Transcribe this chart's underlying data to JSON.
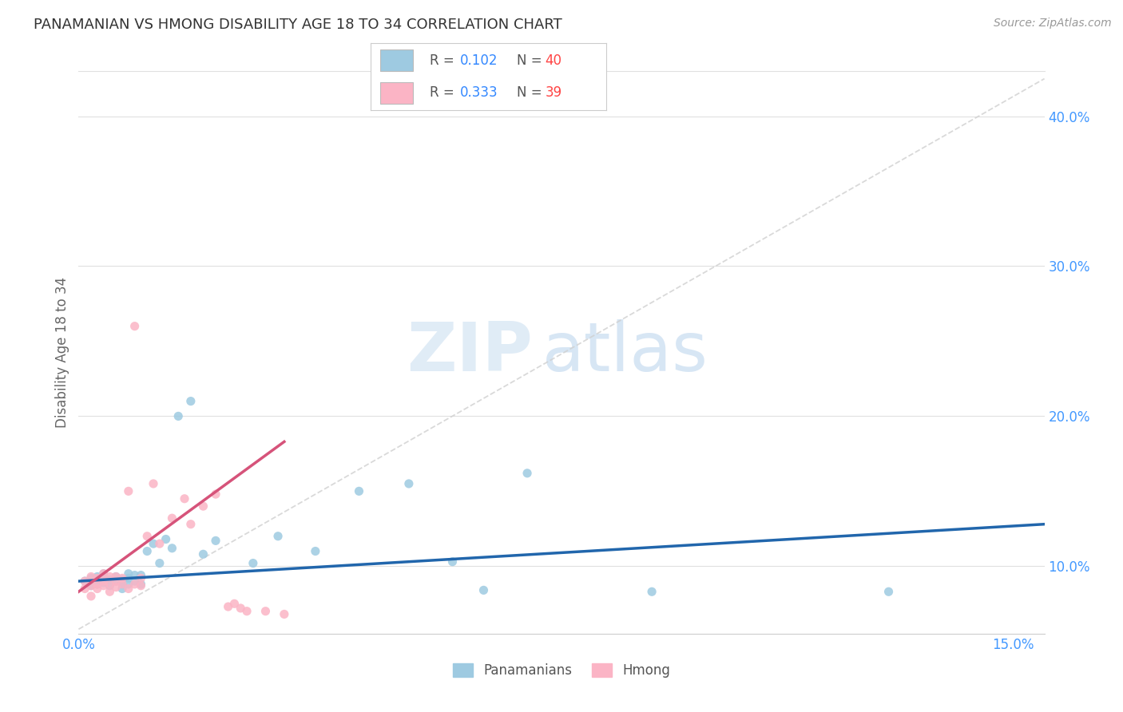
{
  "title": "PANAMANIAN VS HMONG DISABILITY AGE 18 TO 34 CORRELATION CHART",
  "source": "Source: ZipAtlas.com",
  "ylabel": "Disability Age 18 to 34",
  "xlim": [
    0.0,
    0.155
  ],
  "ylim": [
    0.055,
    0.43
  ],
  "xticks": [
    0.0,
    0.03,
    0.06,
    0.09,
    0.12,
    0.15
  ],
  "xtick_labels": [
    "0.0%",
    "",
    "",
    "",
    "",
    "15.0%"
  ],
  "yticks": [
    0.1,
    0.2,
    0.3,
    0.4
  ],
  "ytick_labels": [
    "10.0%",
    "20.0%",
    "30.0%",
    "40.0%"
  ],
  "legend_r_blue": "0.102",
  "legend_n_blue": "40",
  "legend_r_pink": "0.333",
  "legend_n_pink": "39",
  "legend_label_blue": "Panamanians",
  "legend_label_pink": "Hmong",
  "blue_color": "#9ecae1",
  "pink_color": "#fbb4c5",
  "blue_line_color": "#2166ac",
  "pink_line_color": "#d6537a",
  "ref_line_color": "#d0d0d0",
  "watermark_zip": "ZIP",
  "watermark_atlas": "atlas",
  "blue_x": [
    0.001,
    0.002,
    0.002,
    0.003,
    0.003,
    0.004,
    0.004,
    0.005,
    0.005,
    0.006,
    0.006,
    0.007,
    0.007,
    0.007,
    0.008,
    0.008,
    0.008,
    0.009,
    0.009,
    0.01,
    0.01,
    0.011,
    0.012,
    0.013,
    0.014,
    0.015,
    0.016,
    0.018,
    0.02,
    0.022,
    0.028,
    0.032,
    0.038,
    0.045,
    0.053,
    0.06,
    0.065,
    0.072,
    0.092,
    0.13
  ],
  "blue_y": [
    0.09,
    0.087,
    0.092,
    0.088,
    0.093,
    0.089,
    0.095,
    0.087,
    0.091,
    0.09,
    0.093,
    0.088,
    0.085,
    0.091,
    0.095,
    0.092,
    0.088,
    0.09,
    0.094,
    0.088,
    0.094,
    0.11,
    0.115,
    0.102,
    0.118,
    0.112,
    0.2,
    0.21,
    0.108,
    0.117,
    0.102,
    0.12,
    0.11,
    0.15,
    0.155,
    0.103,
    0.084,
    0.162,
    0.083,
    0.083
  ],
  "pink_x": [
    0.001,
    0.001,
    0.002,
    0.002,
    0.002,
    0.003,
    0.003,
    0.003,
    0.004,
    0.004,
    0.004,
    0.005,
    0.005,
    0.005,
    0.006,
    0.006,
    0.006,
    0.007,
    0.007,
    0.008,
    0.008,
    0.009,
    0.009,
    0.01,
    0.01,
    0.011,
    0.012,
    0.013,
    0.015,
    0.017,
    0.018,
    0.02,
    0.022,
    0.024,
    0.025,
    0.026,
    0.027,
    0.03,
    0.033
  ],
  "pink_y": [
    0.085,
    0.09,
    0.08,
    0.087,
    0.093,
    0.085,
    0.088,
    0.092,
    0.087,
    0.09,
    0.095,
    0.083,
    0.088,
    0.093,
    0.09,
    0.086,
    0.093,
    0.088,
    0.092,
    0.085,
    0.15,
    0.088,
    0.26,
    0.087,
    0.092,
    0.12,
    0.155,
    0.115,
    0.132,
    0.145,
    0.128,
    0.14,
    0.148,
    0.073,
    0.075,
    0.072,
    0.07,
    0.07,
    0.068
  ],
  "blue_trendline_x": [
    0.0,
    0.155
  ],
  "blue_trendline_y": [
    0.09,
    0.128
  ],
  "pink_trendline_x": [
    0.0,
    0.033
  ],
  "pink_trendline_y": [
    0.083,
    0.183
  ]
}
